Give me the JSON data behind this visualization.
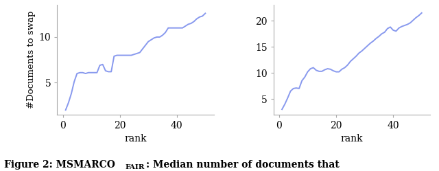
{
  "left_x": [
    1,
    2,
    3,
    4,
    5,
    6,
    7,
    8,
    9,
    10,
    11,
    12,
    13,
    14,
    15,
    16,
    17,
    18,
    19,
    20,
    21,
    22,
    23,
    24,
    25,
    26,
    27,
    28,
    29,
    30,
    31,
    32,
    33,
    34,
    35,
    36,
    37,
    38,
    39,
    40,
    41,
    42,
    43,
    44,
    45,
    46,
    47,
    48,
    49,
    50
  ],
  "left_y": [
    2.0,
    2.8,
    3.8,
    5.1,
    6.0,
    6.1,
    6.1,
    6.0,
    6.1,
    6.1,
    6.1,
    6.1,
    6.9,
    7.0,
    6.3,
    6.2,
    6.2,
    7.9,
    8.0,
    8.0,
    8.0,
    8.0,
    8.0,
    8.0,
    8.1,
    8.2,
    8.3,
    8.7,
    9.1,
    9.5,
    9.7,
    9.9,
    10.0,
    10.0,
    10.2,
    10.5,
    11.0,
    11.0,
    11.0,
    11.0,
    11.0,
    11.0,
    11.2,
    11.4,
    11.5,
    11.7,
    12.0,
    12.2,
    12.3,
    12.6
  ],
  "right_x": [
    1,
    2,
    3,
    4,
    5,
    6,
    7,
    8,
    9,
    10,
    11,
    12,
    13,
    14,
    15,
    16,
    17,
    18,
    19,
    20,
    21,
    22,
    23,
    24,
    25,
    26,
    27,
    28,
    29,
    30,
    31,
    32,
    33,
    34,
    35,
    36,
    37,
    38,
    39,
    40,
    41,
    42,
    43,
    44,
    45,
    46,
    47,
    48,
    49,
    50
  ],
  "right_y": [
    3.0,
    4.0,
    5.2,
    6.5,
    7.0,
    7.1,
    7.0,
    8.5,
    9.2,
    10.2,
    10.8,
    11.0,
    10.5,
    10.3,
    10.3,
    10.6,
    10.8,
    10.7,
    10.4,
    10.2,
    10.2,
    10.7,
    11.0,
    11.5,
    12.2,
    12.7,
    13.2,
    13.8,
    14.2,
    14.7,
    15.2,
    15.7,
    16.1,
    16.6,
    17.0,
    17.5,
    17.8,
    18.5,
    18.8,
    18.2,
    18.0,
    18.6,
    18.9,
    19.1,
    19.3,
    19.6,
    20.1,
    20.6,
    21.0,
    21.5
  ],
  "line_color": "#8899ee",
  "ylabel": "#Documents to swap",
  "xlabel": "rank",
  "left_yticks": [
    5,
    10
  ],
  "right_yticks": [
    5,
    10,
    15,
    20
  ],
  "xticks": [
    0,
    20,
    40
  ],
  "left_ylim": [
    1.5,
    13.5
  ],
  "right_ylim": [
    2.0,
    23.0
  ],
  "figsize": [
    6.4,
    2.49
  ],
  "dpi": 100
}
